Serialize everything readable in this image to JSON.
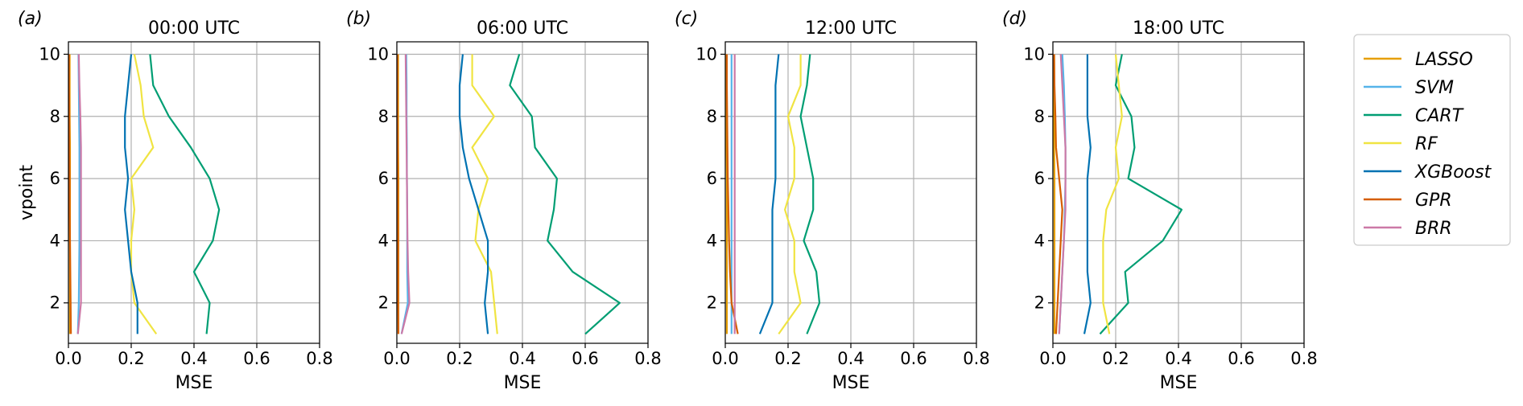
{
  "chart_data": [
    {
      "type": "line",
      "panel_label": "(a)",
      "title": "00:00 UTC",
      "xlabel": "MSE",
      "ylabel": "vpoint",
      "xlim": [
        0.0,
        0.8
      ],
      "ylim": [
        0.7,
        10.4
      ],
      "xticks": [
        "0.0",
        "0.2",
        "0.4",
        "0.6",
        "0.8"
      ],
      "yticks": [
        "2",
        "4",
        "6",
        "8",
        "10"
      ],
      "grid": true,
      "y": [
        1,
        2,
        3,
        4,
        5,
        6,
        7,
        8,
        9,
        10
      ],
      "series": [
        {
          "name": "LASSO",
          "color": "#E69F00",
          "values": [
            0.005,
            0.005,
            0.005,
            0.005,
            0.005,
            0.005,
            0.005,
            0.004,
            0.004,
            0.004
          ]
        },
        {
          "name": "SVM",
          "color": "#56B4E9",
          "values": [
            0.03,
            0.033,
            0.034,
            0.035,
            0.035,
            0.035,
            0.035,
            0.034,
            0.033,
            0.032
          ]
        },
        {
          "name": "CART",
          "color": "#009E73",
          "values": [
            0.44,
            0.45,
            0.4,
            0.46,
            0.48,
            0.45,
            0.39,
            0.32,
            0.27,
            0.26
          ]
        },
        {
          "name": "RF",
          "color": "#F0E442",
          "values": [
            0.28,
            0.21,
            0.2,
            0.2,
            0.21,
            0.2,
            0.27,
            0.24,
            0.23,
            0.21
          ]
        },
        {
          "name": "XGBoost",
          "color": "#0072B2",
          "values": [
            0.22,
            0.22,
            0.2,
            0.19,
            0.18,
            0.19,
            0.18,
            0.18,
            0.19,
            0.2
          ]
        },
        {
          "name": "GPR",
          "color": "#D55E00",
          "values": [
            0.008,
            0.007,
            0.006,
            0.005,
            0.004,
            0.004,
            0.003,
            0.003,
            0.002,
            0.002
          ]
        },
        {
          "name": "BRR",
          "color": "#CC79A7",
          "values": [
            0.03,
            0.04,
            0.04,
            0.04,
            0.04,
            0.04,
            0.04,
            0.038,
            0.035,
            0.033
          ]
        }
      ]
    },
    {
      "type": "line",
      "panel_label": "(b)",
      "title": "06:00 UTC",
      "xlabel": "MSE",
      "ylabel": "",
      "xlim": [
        0.0,
        0.8
      ],
      "ylim": [
        0.7,
        10.4
      ],
      "xticks": [
        "0.0",
        "0.2",
        "0.4",
        "0.6",
        "0.8"
      ],
      "yticks": [
        "2",
        "4",
        "6",
        "8",
        "10"
      ],
      "grid": true,
      "y": [
        1,
        2,
        3,
        4,
        5,
        6,
        7,
        8,
        9,
        10
      ],
      "series": [
        {
          "name": "LASSO",
          "color": "#E69F00",
          "values": [
            0.005,
            0.005,
            0.005,
            0.005,
            0.005,
            0.005,
            0.004,
            0.004,
            0.004,
            0.004
          ]
        },
        {
          "name": "SVM",
          "color": "#56B4E9",
          "values": [
            0.015,
            0.035,
            0.033,
            0.033,
            0.033,
            0.032,
            0.032,
            0.031,
            0.031,
            0.03
          ]
        },
        {
          "name": "CART",
          "color": "#009E73",
          "values": [
            0.6,
            0.71,
            0.56,
            0.48,
            0.5,
            0.51,
            0.44,
            0.43,
            0.36,
            0.39
          ]
        },
        {
          "name": "RF",
          "color": "#F0E442",
          "values": [
            0.32,
            0.31,
            0.3,
            0.25,
            0.26,
            0.29,
            0.24,
            0.31,
            0.24,
            0.24
          ]
        },
        {
          "name": "XGBoost",
          "color": "#0072B2",
          "values": [
            0.29,
            0.28,
            0.29,
            0.29,
            0.26,
            0.23,
            0.21,
            0.2,
            0.2,
            0.21
          ]
        },
        {
          "name": "GPR",
          "color": "#D55E00",
          "values": [
            0.005,
            0.004,
            0.004,
            0.004,
            0.003,
            0.003,
            0.003,
            0.002,
            0.002,
            0.002
          ]
        },
        {
          "name": "BRR",
          "color": "#CC79A7",
          "values": [
            0.015,
            0.04,
            0.036,
            0.034,
            0.033,
            0.032,
            0.031,
            0.03,
            0.029,
            0.028
          ]
        }
      ]
    },
    {
      "type": "line",
      "panel_label": "(c)",
      "title": "12:00 UTC",
      "xlabel": "MSE",
      "ylabel": "",
      "xlim": [
        0.0,
        0.8
      ],
      "ylim": [
        0.7,
        10.4
      ],
      "xticks": [
        "0.0",
        "0.2",
        "0.4",
        "0.6",
        "0.8"
      ],
      "yticks": [
        "2",
        "4",
        "6",
        "8",
        "10"
      ],
      "grid": true,
      "y": [
        1,
        2,
        3,
        4,
        5,
        6,
        7,
        8,
        9,
        10
      ],
      "series": [
        {
          "name": "LASSO",
          "color": "#E69F00",
          "values": [
            0.005,
            0.005,
            0.005,
            0.005,
            0.005,
            0.005,
            0.004,
            0.004,
            0.004,
            0.004
          ]
        },
        {
          "name": "SVM",
          "color": "#56B4E9",
          "values": [
            0.02,
            0.02,
            0.02,
            0.02,
            0.02,
            0.02,
            0.02,
            0.02,
            0.02,
            0.02
          ]
        },
        {
          "name": "CART",
          "color": "#009E73",
          "values": [
            0.26,
            0.3,
            0.29,
            0.25,
            0.28,
            0.28,
            0.26,
            0.24,
            0.26,
            0.27
          ]
        },
        {
          "name": "RF",
          "color": "#F0E442",
          "values": [
            0.17,
            0.24,
            0.22,
            0.22,
            0.19,
            0.22,
            0.22,
            0.2,
            0.24,
            0.24
          ]
        },
        {
          "name": "XGBoost",
          "color": "#0072B2",
          "values": [
            0.11,
            0.15,
            0.15,
            0.15,
            0.15,
            0.16,
            0.16,
            0.16,
            0.16,
            0.17
          ]
        },
        {
          "name": "GPR",
          "color": "#D55E00",
          "values": [
            0.04,
            0.02,
            0.015,
            0.012,
            0.01,
            0.008,
            0.007,
            0.006,
            0.005,
            0.005
          ]
        },
        {
          "name": "BRR",
          "color": "#CC79A7",
          "values": [
            0.03,
            0.03,
            0.03,
            0.03,
            0.03,
            0.03,
            0.03,
            0.03,
            0.03,
            0.03
          ]
        }
      ]
    },
    {
      "type": "line",
      "panel_label": "(d)",
      "title": "18:00 UTC",
      "xlabel": "MSE",
      "ylabel": "",
      "xlim": [
        0.0,
        0.8
      ],
      "ylim": [
        0.7,
        10.4
      ],
      "xticks": [
        "0.0",
        "0.2",
        "0.4",
        "0.6",
        "0.8"
      ],
      "yticks": [
        "2",
        "4",
        "6",
        "8",
        "10"
      ],
      "grid": true,
      "y": [
        1,
        2,
        3,
        4,
        5,
        6,
        7,
        8,
        9,
        10
      ],
      "series": [
        {
          "name": "LASSO",
          "color": "#E69F00",
          "values": [
            0.005,
            0.005,
            0.005,
            0.005,
            0.005,
            0.005,
            0.004,
            0.004,
            0.004,
            0.004
          ]
        },
        {
          "name": "SVM",
          "color": "#56B4E9",
          "values": [
            0.02,
            0.025,
            0.03,
            0.035,
            0.038,
            0.04,
            0.04,
            0.038,
            0.035,
            0.03
          ]
        },
        {
          "name": "CART",
          "color": "#009E73",
          "values": [
            0.15,
            0.24,
            0.23,
            0.35,
            0.41,
            0.24,
            0.26,
            0.25,
            0.2,
            0.22
          ]
        },
        {
          "name": "RF",
          "color": "#F0E442",
          "values": [
            0.18,
            0.16,
            0.16,
            0.16,
            0.17,
            0.21,
            0.2,
            0.22,
            0.21,
            0.2
          ]
        },
        {
          "name": "XGBoost",
          "color": "#0072B2",
          "values": [
            0.1,
            0.12,
            0.11,
            0.11,
            0.11,
            0.11,
            0.12,
            0.11,
            0.11,
            0.11
          ]
        },
        {
          "name": "GPR",
          "color": "#D55E00",
          "values": [
            0.01,
            0.015,
            0.02,
            0.025,
            0.03,
            0.02,
            0.01,
            0.008,
            0.005,
            0.004
          ]
        },
        {
          "name": "BRR",
          "color": "#CC79A7",
          "values": [
            0.02,
            0.025,
            0.03,
            0.035,
            0.04,
            0.04,
            0.04,
            0.035,
            0.03,
            0.025
          ]
        }
      ]
    }
  ],
  "legend": {
    "placement": "right",
    "entries": [
      "LASSO",
      "SVM",
      "CART",
      "RF",
      "XGBoost",
      "GPR",
      "BRR"
    ]
  }
}
